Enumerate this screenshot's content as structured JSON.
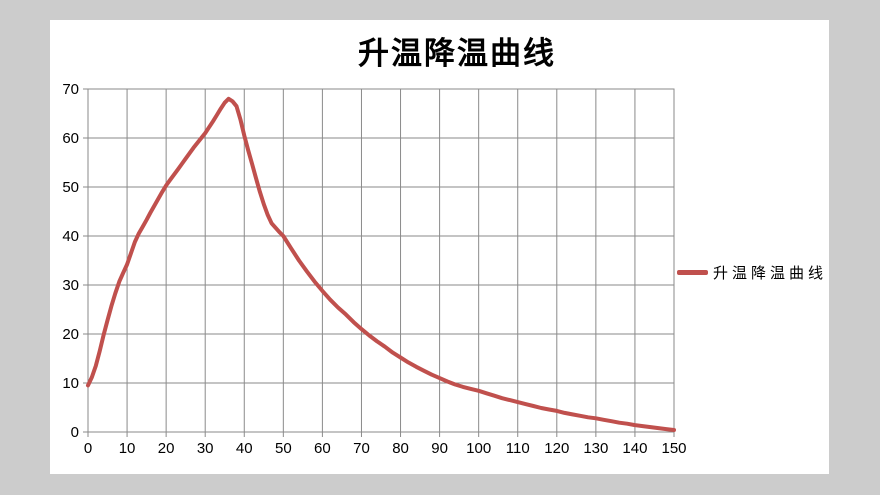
{
  "page": {
    "background": "#cccccc",
    "chart_background": "#ffffff"
  },
  "chart_data": {
    "type": "line",
    "title": "升温降温曲线",
    "xlabel": "",
    "ylabel": "",
    "xlim": [
      0,
      150
    ],
    "ylim": [
      0,
      70
    ],
    "grid": true,
    "x_ticks": [
      0,
      10,
      20,
      30,
      40,
      50,
      60,
      70,
      80,
      90,
      100,
      110,
      120,
      130,
      140,
      150
    ],
    "y_ticks": [
      0,
      10,
      20,
      30,
      40,
      50,
      60,
      70
    ],
    "legend": {
      "position": "right",
      "entries": [
        {
          "label": "升温降温曲线",
          "color": "#C0504D"
        }
      ]
    },
    "colors": {
      "line": "#C0504D",
      "grid": "#8A8A8A",
      "text": "#000000",
      "plot_bg": "#FFFFFF"
    },
    "series": [
      {
        "name": "升温降温曲线",
        "color": "#C0504D",
        "points": [
          [
            0,
            9.5
          ],
          [
            1,
            11.2
          ],
          [
            2,
            13.5
          ],
          [
            3,
            16.5
          ],
          [
            4,
            19.8
          ],
          [
            5,
            22.8
          ],
          [
            6,
            25.7
          ],
          [
            7,
            28.3
          ],
          [
            8,
            30.7
          ],
          [
            9,
            32.5
          ],
          [
            10,
            34.2
          ],
          [
            11,
            36.5
          ],
          [
            12,
            38.8
          ],
          [
            13,
            40.5
          ],
          [
            14,
            41.9
          ],
          [
            15,
            43.3
          ],
          [
            16,
            44.8
          ],
          [
            17,
            46.2
          ],
          [
            18,
            47.6
          ],
          [
            19,
            49.0
          ],
          [
            20,
            50.3
          ],
          [
            21,
            51.4
          ],
          [
            22,
            52.5
          ],
          [
            23,
            53.6
          ],
          [
            24,
            54.7
          ],
          [
            25,
            55.8
          ],
          [
            26,
            56.9
          ],
          [
            27,
            58.0
          ],
          [
            28,
            59.0
          ],
          [
            29,
            60.0
          ],
          [
            30,
            61.0
          ],
          [
            31,
            62.2
          ],
          [
            32,
            63.4
          ],
          [
            33,
            64.7
          ],
          [
            34,
            66.0
          ],
          [
            35,
            67.2
          ],
          [
            36,
            68.0
          ],
          [
            37,
            67.5
          ],
          [
            38,
            66.5
          ],
          [
            39,
            63.8
          ],
          [
            40,
            60.5
          ],
          [
            41,
            57.5
          ],
          [
            42,
            54.7
          ],
          [
            43,
            51.8
          ],
          [
            44,
            49.0
          ],
          [
            45,
            46.5
          ],
          [
            46,
            44.3
          ],
          [
            47,
            42.6
          ],
          [
            48,
            41.7
          ],
          [
            49,
            40.8
          ],
          [
            50,
            40.0
          ],
          [
            52,
            37.5
          ],
          [
            54,
            35.0
          ],
          [
            56,
            32.8
          ],
          [
            58,
            30.7
          ],
          [
            60,
            28.8
          ],
          [
            62,
            27.0
          ],
          [
            64,
            25.4
          ],
          [
            66,
            24.0
          ],
          [
            68,
            22.4
          ],
          [
            70,
            21.0
          ],
          [
            72,
            19.7
          ],
          [
            74,
            18.5
          ],
          [
            76,
            17.4
          ],
          [
            78,
            16.2
          ],
          [
            80,
            15.2
          ],
          [
            82,
            14.2
          ],
          [
            84,
            13.3
          ],
          [
            86,
            12.5
          ],
          [
            88,
            11.7
          ],
          [
            90,
            11.0
          ],
          [
            92,
            10.3
          ],
          [
            94,
            9.7
          ],
          [
            96,
            9.2
          ],
          [
            98,
            8.8
          ],
          [
            100,
            8.4
          ],
          [
            102,
            7.9
          ],
          [
            104,
            7.4
          ],
          [
            106,
            6.9
          ],
          [
            108,
            6.5
          ],
          [
            110,
            6.1
          ],
          [
            112,
            5.7
          ],
          [
            114,
            5.3
          ],
          [
            116,
            4.9
          ],
          [
            118,
            4.6
          ],
          [
            120,
            4.3
          ],
          [
            122,
            3.9
          ],
          [
            124,
            3.6
          ],
          [
            126,
            3.3
          ],
          [
            128,
            3.0
          ],
          [
            130,
            2.8
          ],
          [
            132,
            2.5
          ],
          [
            134,
            2.2
          ],
          [
            136,
            1.9
          ],
          [
            138,
            1.7
          ],
          [
            140,
            1.4
          ],
          [
            142,
            1.2
          ],
          [
            144,
            1.0
          ],
          [
            146,
            0.8
          ],
          [
            148,
            0.6
          ],
          [
            150,
            0.4
          ]
        ]
      }
    ]
  }
}
